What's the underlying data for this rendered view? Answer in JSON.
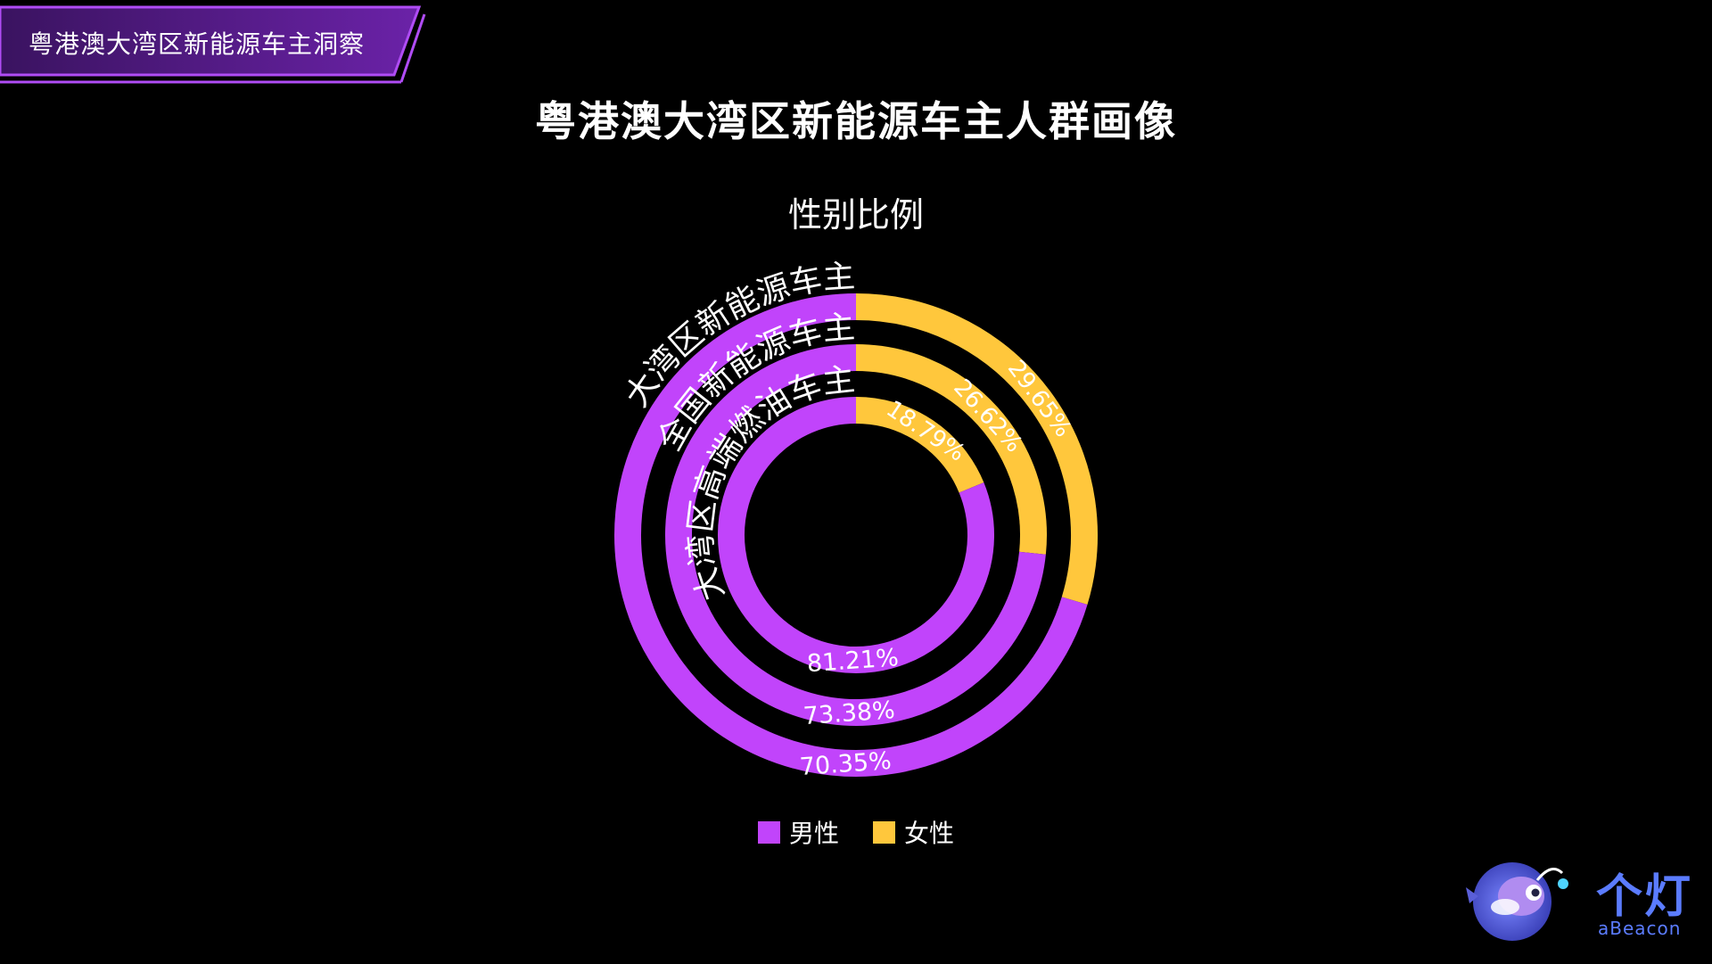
{
  "section_tag": {
    "label": "粤港澳大湾区新能源车主洞察"
  },
  "page_title": "粤港澳大湾区新能源车主人群画像",
  "colors": {
    "male": "#C144FB",
    "female": "#FFC73C",
    "accent": "#8E2DDB",
    "background": "#000000",
    "brand": "#5B7CFF"
  },
  "brand": {
    "name": "个灯",
    "sub": "aBeacon",
    "icon": "anglerfish-mascot-icon"
  },
  "chart_data": {
    "type": "pie",
    "subtype": "multi-ring-donut",
    "title": "性别比例",
    "categories": [
      "男性",
      "女性"
    ],
    "legend_position": "bottom",
    "series": [
      {
        "name": "大湾区新能源车主",
        "values": [
          70.35,
          29.65
        ],
        "labels": [
          "70.35%",
          "29.65%"
        ]
      },
      {
        "name": "全国新能源车主",
        "values": [
          73.38,
          26.62
        ],
        "labels": [
          "73.38%",
          "26.62%"
        ]
      },
      {
        "name": "大湾区高端燃油车主",
        "values": [
          81.21,
          18.79
        ],
        "labels": [
          "81.21%",
          "18.79%"
        ]
      }
    ]
  }
}
